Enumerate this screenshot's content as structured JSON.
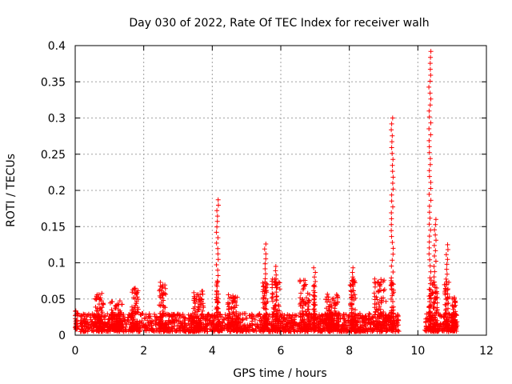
{
  "chart_data": {
    "type": "scatter",
    "title": "Day 030 of 2022, Rate Of TEC Index for receiver walh",
    "xlabel": "GPS time / hours",
    "ylabel": "ROTI / TECUs",
    "xlim": [
      0,
      12
    ],
    "ylim": [
      0,
      0.4
    ],
    "xticks": [
      0,
      2,
      4,
      6,
      8,
      10,
      12
    ],
    "xtick_labels": [
      "0",
      "2",
      "4",
      "6",
      "8",
      "10",
      "12"
    ],
    "yticks": [
      0,
      0.05,
      0.1,
      0.15,
      0.2,
      0.25,
      0.3,
      0.35,
      0.4
    ],
    "ytick_labels": [
      "0",
      "0.05",
      "0.1",
      "0.15",
      "0.2",
      "0.25",
      "0.3",
      "0.35",
      "0.4"
    ],
    "grid": true,
    "marker": "+",
    "color": "#ff0000",
    "background_segments": [
      {
        "x_start": 0.15,
        "x_end": 9.45,
        "y_min": 0.005,
        "y_max": 0.03
      },
      {
        "x_start": 10.2,
        "x_end": 11.15,
        "y_min": 0.005,
        "y_max": 0.03
      }
    ],
    "bursts": [
      {
        "x": 0.0,
        "width": 0.15,
        "peak": 0.027
      },
      {
        "x": 0.7,
        "width": 0.25,
        "peak": 0.05
      },
      {
        "x": 1.2,
        "width": 0.35,
        "peak": 0.04
      },
      {
        "x": 1.75,
        "width": 0.2,
        "peak": 0.058
      },
      {
        "x": 2.55,
        "width": 0.2,
        "peak": 0.066
      },
      {
        "x": 3.6,
        "width": 0.3,
        "peak": 0.053
      },
      {
        "x": 4.15,
        "width": 0.08,
        "peak": 0.187
      },
      {
        "x": 4.6,
        "width": 0.3,
        "peak": 0.048
      },
      {
        "x": 5.55,
        "width": 0.15,
        "peak": 0.126
      },
      {
        "x": 5.85,
        "width": 0.25,
        "peak": 0.095
      },
      {
        "x": 6.7,
        "width": 0.3,
        "peak": 0.068
      },
      {
        "x": 6.98,
        "width": 0.05,
        "peak": 0.093
      },
      {
        "x": 7.5,
        "width": 0.4,
        "peak": 0.05
      },
      {
        "x": 8.1,
        "width": 0.15,
        "peak": 0.093
      },
      {
        "x": 8.9,
        "width": 0.35,
        "peak": 0.07
      },
      {
        "x": 9.25,
        "width": 0.1,
        "peak": 0.3
      },
      {
        "x": 10.35,
        "width": 0.08,
        "peak": 0.392
      },
      {
        "x": 10.5,
        "width": 0.15,
        "peak": 0.16
      },
      {
        "x": 10.85,
        "width": 0.15,
        "peak": 0.125
      },
      {
        "x": 11.05,
        "width": 0.1,
        "peak": 0.05
      }
    ]
  }
}
